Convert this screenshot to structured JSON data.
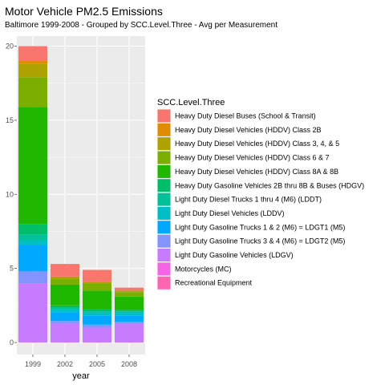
{
  "chart_data": {
    "type": "bar",
    "stacked": true,
    "title": "Motor Vehicle PM2.5 Emissions",
    "subtitle": "Baltimore 1999-2008 - Grouped by SCC.Level.Three - Avg per Measurement",
    "xlabel": "year",
    "ylabel": "",
    "categories": [
      "1999",
      "2002",
      "2005",
      "2008"
    ],
    "ylim": [
      0,
      20
    ],
    "yticks": [
      0,
      5,
      10,
      15,
      20
    ],
    "grid": true,
    "legend_title": "SCC.Level.Three",
    "legend_position": "right",
    "series": [
      {
        "name": "Light Duty Gasoline Vehicles (LDGV)",
        "color": "#C77CFF",
        "values": [
          4.0,
          1.3,
          1.0,
          1.25
        ]
      },
      {
        "name": "Light Duty Gasoline Trucks 3 & 4 (M6) = LDGT2 (M5)",
        "color": "#8494FF",
        "values": [
          0.8,
          0.15,
          0.2,
          0.15
        ]
      },
      {
        "name": "Light Duty Gasoline Trucks 1 & 2 (M6) = LDGT1 (M5)",
        "color": "#00A9FF",
        "values": [
          1.8,
          0.6,
          0.6,
          0.4
        ]
      },
      {
        "name": "Light Duty Diesel Vehicles (LDDV)",
        "color": "#00BFC4",
        "values": [
          0.3,
          0.2,
          0.2,
          0.2
        ]
      },
      {
        "name": "Light Duty Diesel Trucks 1 thru 4 (M6) (LDDT)",
        "color": "#00C19A",
        "values": [
          0.4,
          0.1,
          0.1,
          0.1
        ]
      },
      {
        "name": "Heavy Duty Gasoline Vehicles 2B thru 8B & Buses (HDGV)",
        "color": "#00BE67",
        "values": [
          0.7,
          0.15,
          0.15,
          0.1
        ]
      },
      {
        "name": "Heavy Duty Diesel Vehicles (HDDV) Class 8A & 8B",
        "color": "#1FB700",
        "values": [
          7.9,
          1.4,
          1.25,
          0.9
        ]
      },
      {
        "name": "Heavy Duty Diesel Vehicles (HDDV) Class 6 & 7",
        "color": "#7CAE00",
        "values": [
          2.0,
          0.4,
          0.5,
          0.3
        ]
      },
      {
        "name": "Heavy Duty Diesel Vehicles (HDDV) Class 3, 4, & 5",
        "color": "#AEA200",
        "values": [
          0.9,
          0.15,
          0.1,
          0.1
        ]
      },
      {
        "name": "Heavy Duty Diesel Vehicles (HDDV) Class 2B",
        "color": "#DE8C00",
        "values": [
          0.2,
          0.0,
          0.0,
          0.0
        ]
      },
      {
        "name": "Heavy Duty Diesel Buses (School & Transit)",
        "color": "#F8766D",
        "values": [
          1.0,
          0.85,
          0.8,
          0.2
        ]
      },
      {
        "name": "Motorcycles (MC)",
        "color": "#F564E3",
        "values": [
          0.0,
          0.0,
          0.0,
          0.0
        ]
      },
      {
        "name": "Recreational Equipment",
        "color": "#FF64B0",
        "values": [
          0.0,
          0.0,
          0.0,
          0.0
        ]
      }
    ],
    "legend_order": [
      "Heavy Duty Diesel Buses (School & Transit)",
      "Heavy Duty Diesel Vehicles (HDDV) Class 2B",
      "Heavy Duty Diesel Vehicles (HDDV) Class 3, 4, & 5",
      "Heavy Duty Diesel Vehicles (HDDV) Class 6 & 7",
      "Heavy Duty Diesel Vehicles (HDDV) Class 8A & 8B",
      "Heavy Duty Gasoline Vehicles 2B thru 8B & Buses (HDGV)",
      "Light Duty Diesel Trucks 1 thru 4 (M6) (LDDT)",
      "Light Duty Diesel Vehicles (LDDV)",
      "Light Duty Gasoline Trucks 1 & 2 (M6) = LDGT1 (M5)",
      "Light Duty Gasoline Trucks 3 & 4 (M6) = LDGT2 (M5)",
      "Light Duty Gasoline Vehicles (LDGV)",
      "Motorcycles (MC)",
      "Recreational Equipment"
    ]
  }
}
